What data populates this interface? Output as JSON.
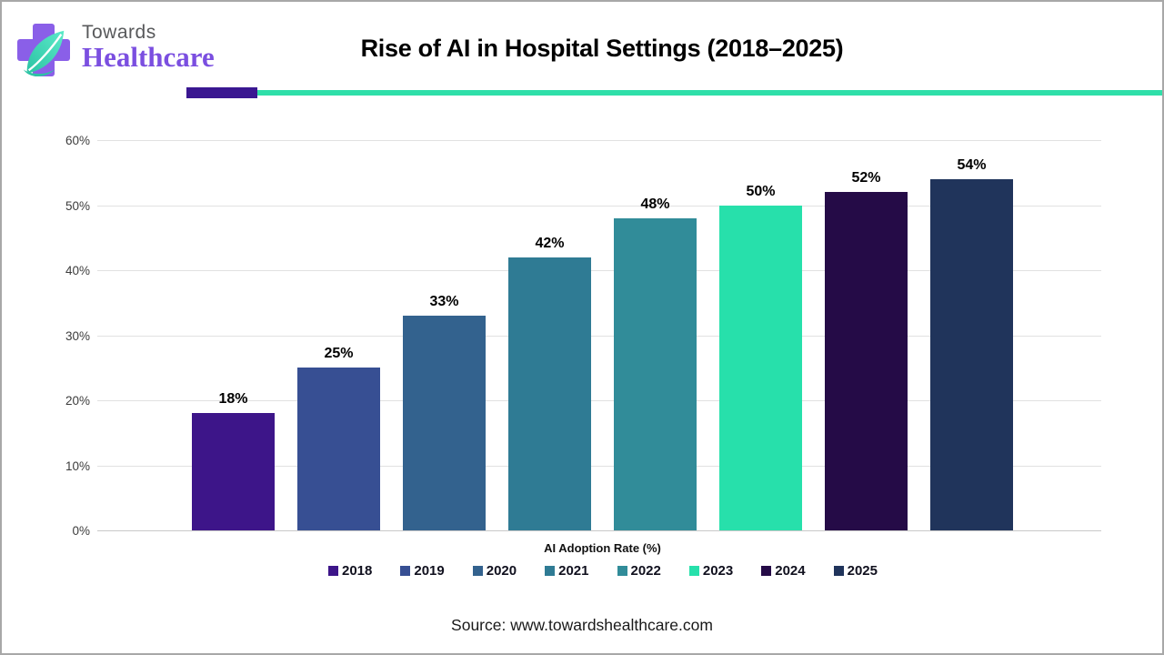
{
  "brand": {
    "line1": "Towards",
    "line2": "Healthcare",
    "colors": {
      "cross": "#8a5fe8",
      "leaf_light": "#5ceac9",
      "leaf_dark": "#2cc3a4",
      "line1_text": "#58595b",
      "line2_text": "#7b4fe0"
    }
  },
  "header": {
    "title": "Rise of AI in Hospital Settings (2018–2025)",
    "underline_accent_color": "#3a1791",
    "underline_color": "#2fdfa9"
  },
  "chart_data": {
    "type": "bar",
    "title": "Rise of AI in Hospital Settings (2018–2025)",
    "xlabel": "AI Adoption Rate (%)",
    "ylabel": "",
    "categories": [
      "2018",
      "2019",
      "2020",
      "2021",
      "2022",
      "2023",
      "2024",
      "2025"
    ],
    "values": [
      18,
      25,
      33,
      42,
      48,
      50,
      52,
      54
    ],
    "value_labels": [
      "18%",
      "25%",
      "33%",
      "42%",
      "48%",
      "50%",
      "52%",
      "54%"
    ],
    "bar_colors": [
      "#3d1589",
      "#374f93",
      "#33628e",
      "#2f7b94",
      "#318c99",
      "#27e0ab",
      "#250b47",
      "#20345b"
    ],
    "ylim": [
      0,
      60
    ],
    "ytick_step": 10,
    "ytick_labels": [
      "0%",
      "10%",
      "20%",
      "30%",
      "40%",
      "50%",
      "60%"
    ],
    "grid": true,
    "gridline_color": "#e1e1e1",
    "legend_position": "bottom"
  },
  "footer": {
    "source": "Source: www.towardshealthcare.com"
  }
}
